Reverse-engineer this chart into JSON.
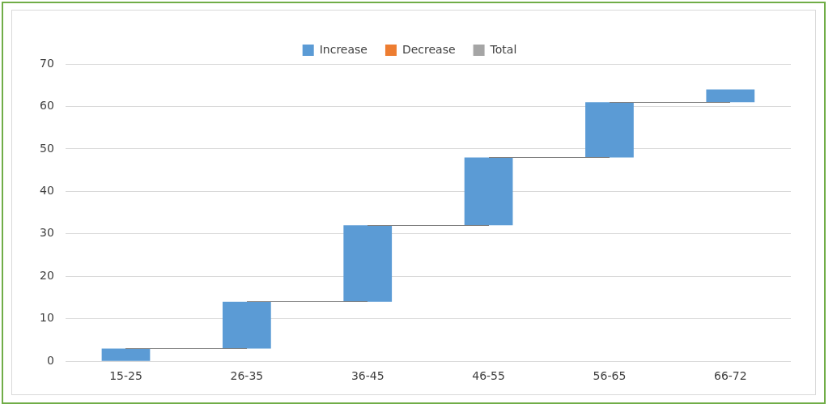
{
  "chart_data": {
    "type": "bar",
    "categories": [
      "15-25",
      "26-35",
      "36-45",
      "46-55",
      "56-65",
      "66-72"
    ],
    "series": [
      {
        "name": "Increase",
        "color": "#5b9bd5",
        "values": [
          3,
          11,
          18,
          16,
          13,
          3
        ],
        "base": [
          0,
          3,
          14,
          32,
          48,
          61
        ]
      },
      {
        "name": "Decrease",
        "color": "#ed7d31",
        "values": [
          null,
          null,
          null,
          null,
          null,
          null
        ]
      },
      {
        "name": "Total",
        "color": "#a5a5a5",
        "values": [
          null,
          null,
          null,
          null,
          null,
          null
        ]
      }
    ],
    "ylim": [
      0,
      70
    ],
    "yticks": [
      0,
      10,
      20,
      30,
      40,
      50,
      60,
      70
    ],
    "grid": "y",
    "legend": "top"
  }
}
